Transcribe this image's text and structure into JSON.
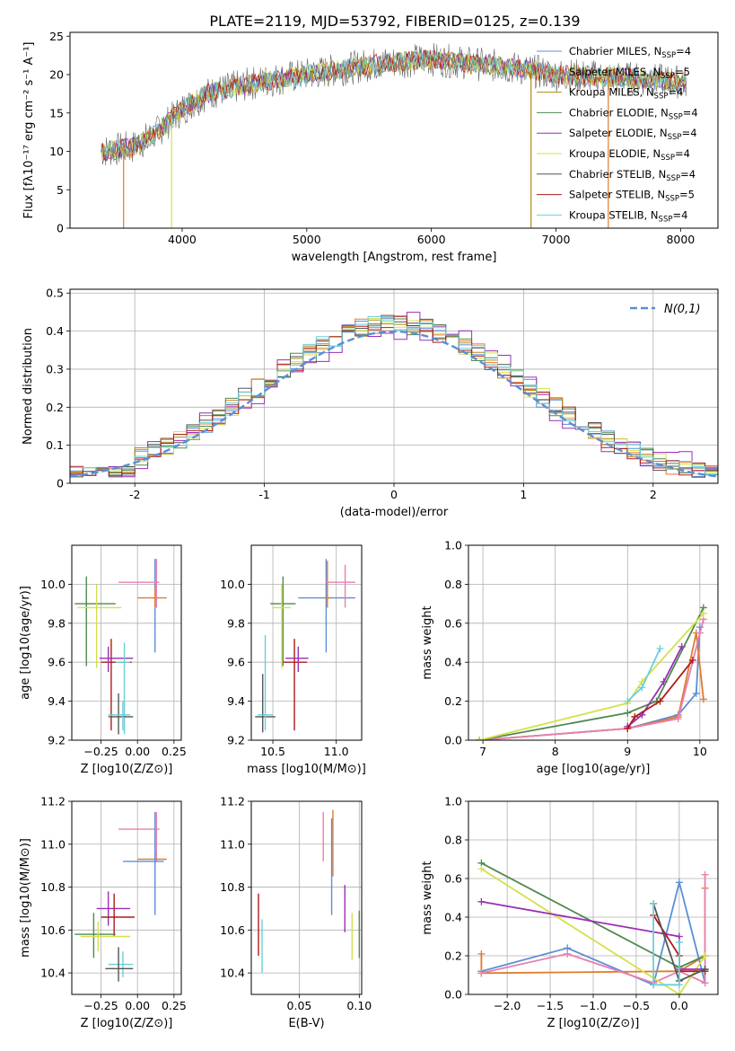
{
  "title": "PLATE=2119, MJD=53792, FIBERID=0125, z=0.139",
  "colors": {
    "chabrier_miles": "#5b8fd6",
    "salpeter_miles": "#e07b2c",
    "kroupa_miles": "#b08a18",
    "chabrier_elodie": "#4e8a4e",
    "salpeter_elodie": "#9a2fb5",
    "kroupa_elodie": "#d4e04a",
    "chabrier_stelib": "#555555",
    "salpeter_stelib": "#b01a1a",
    "kroupa_stelib": "#6ccfd8",
    "pink": "#e87fb0",
    "gaussian": "#5b8fd6",
    "grid": "#b0b0b0"
  },
  "chart_data": [
    {
      "id": "spectrum",
      "type": "line",
      "xlabel": "wavelength [Angstrom, rest frame]",
      "ylabel": "Flux [fλ10⁻¹⁷ erg cm⁻² s⁻¹ A⁻¹]",
      "xlim": [
        3100,
        8300
      ],
      "ylim": [
        0,
        25.5
      ],
      "xticks": [
        4000,
        5000,
        6000,
        7000,
        8000
      ],
      "yticks": [
        0,
        5,
        10,
        15,
        20,
        25
      ],
      "legend_position": "top-right",
      "legend": [
        "Chabrier MILES, N_SSP=4",
        "Salpeter MILES, N_SSP=5",
        "Kroupa MILES, N_SSP=4",
        "Chabrier ELODIE, N_SSP=4",
        "Salpeter ELODIE, N_SSP=4",
        "Kroupa ELODIE, N_SSP=4",
        "Chabrier STELIB, N_SSP=4",
        "Salpeter STELIB, N_SSP=5",
        "Kroupa STELIB, N_SSP=4"
      ],
      "continuum": {
        "x": [
          3350,
          3600,
          3800,
          4000,
          4200,
          4600,
          5000,
          5600,
          6000,
          6600,
          7000,
          7600,
          8050
        ],
        "y": [
          10,
          10.5,
          12.5,
          15.5,
          17.5,
          19,
          20,
          21.5,
          22,
          21,
          20,
          19.5,
          19
        ]
      },
      "spikes": [
        {
          "x": 3530,
          "y_min": 0
        },
        {
          "x": 3915,
          "y_min": 0
        },
        {
          "x": 6800,
          "y_min": 0
        },
        {
          "x": 7420,
          "y_min": 0
        }
      ]
    },
    {
      "id": "residuals",
      "type": "histogram",
      "xlabel": "(data-model)/error",
      "ylabel": "Normed distribution",
      "xlim": [
        -2.5,
        2.5
      ],
      "ylim": [
        0,
        0.51
      ],
      "xticks": [
        -2,
        -1,
        0,
        1,
        2
      ],
      "yticks": [
        0,
        0.1,
        0.2,
        0.3,
        0.4,
        0.5
      ],
      "bin_width": 0.1,
      "legend": "N(0,1)",
      "legend_position": "top-right",
      "gaussian": {
        "mu": 0,
        "sigma": 1
      }
    },
    {
      "id": "Z_age",
      "type": "errorbar",
      "xlabel": "Z [log10(Z/Z⊙)]",
      "ylabel": "age  [log10(age/yr)]",
      "xlim": [
        -0.45,
        0.3
      ],
      "ylim": [
        9.2,
        10.2
      ],
      "xticks": [
        -0.25,
        0,
        0.25
      ],
      "xticklabels": [
        "−0.25",
        "0.00",
        "0.25"
      ],
      "yticks": [
        9.2,
        9.4,
        9.6,
        9.8,
        10.0
      ],
      "yticklabels": [
        "9.2",
        "9.4",
        "9.6",
        "9.8",
        "10.0"
      ],
      "points": [
        {
          "c": "chabrier_miles",
          "x": 0.12,
          "xe": [
            0.1,
            0.14
          ],
          "y": 9.93,
          "ye": [
            9.65,
            10.13
          ]
        },
        {
          "c": "salpeter_miles",
          "x": 0.12,
          "xe": [
            0.0,
            0.2
          ],
          "y": 9.93,
          "ye": [
            9.88,
            9.98
          ]
        },
        {
          "c": "pink",
          "x": 0.13,
          "xe": [
            -0.13,
            0.15
          ],
          "y": 10.01,
          "ye": [
            9.88,
            10.13
          ]
        },
        {
          "c": "chabrier_elodie",
          "x": -0.35,
          "xe": [
            -0.43,
            -0.15
          ],
          "y": 9.9,
          "ye": [
            9.58,
            10.04
          ]
        },
        {
          "c": "kroupa_elodie",
          "x": -0.28,
          "xe": [
            -0.41,
            -0.11
          ],
          "y": 9.88,
          "ye": [
            9.57,
            10.0
          ]
        },
        {
          "c": "salpeter_stelib",
          "x": -0.18,
          "xe": [
            -0.25,
            -0.04
          ],
          "y": 9.6,
          "ye": [
            9.25,
            9.72
          ]
        },
        {
          "c": "salpeter_elodie",
          "x": -0.2,
          "xe": [
            -0.26,
            -0.03
          ],
          "y": 9.62,
          "ye": [
            9.55,
            9.68
          ]
        },
        {
          "c": "kroupa_stelib",
          "x": -0.09,
          "xe": [
            -0.15,
            -0.05
          ],
          "y": 9.6,
          "ye": [
            9.23,
            9.7
          ]
        },
        {
          "c": "chabrier_stelib",
          "x": -0.13,
          "xe": [
            -0.2,
            -0.03
          ],
          "y": 9.32,
          "ye": [
            9.23,
            9.44
          ]
        },
        {
          "c": "kroupa_stelib",
          "x": -0.1,
          "xe": [
            -0.2,
            -0.05
          ],
          "y": 9.33,
          "ye": [
            9.25,
            9.4
          ]
        }
      ]
    },
    {
      "id": "mass_age",
      "type": "errorbar",
      "xlabel": "mass [log10(M/M⊙)]",
      "ylabel": "",
      "xlim": [
        10.33,
        11.2
      ],
      "ylim": [
        9.2,
        10.2
      ],
      "xticks": [
        10.5,
        11.0
      ],
      "xticklabels": [
        "10.5",
        "11.0"
      ],
      "yticks": [
        9.2,
        9.4,
        9.6,
        9.8,
        10.0
      ],
      "yticklabels": [
        "9.2",
        "9.4",
        "9.6",
        "9.8",
        "10.0"
      ],
      "points": [
        {
          "c": "chabrier_miles",
          "x": 10.92,
          "xe": [
            10.7,
            11.15
          ],
          "y": 9.93,
          "ye": [
            9.65,
            10.13
          ]
        },
        {
          "c": "salpeter_miles",
          "x": 10.93,
          "xe": [
            10.9,
            10.96
          ],
          "y": 9.93,
          "ye": [
            9.88,
            10.12
          ]
        },
        {
          "c": "pink",
          "x": 11.07,
          "xe": [
            10.92,
            11.15
          ],
          "y": 10.01,
          "ye": [
            9.88,
            10.1
          ]
        },
        {
          "c": "chabrier_elodie",
          "x": 10.58,
          "xe": [
            10.48,
            10.68
          ],
          "y": 9.9,
          "ye": [
            9.58,
            10.04
          ]
        },
        {
          "c": "kroupa_elodie",
          "x": 10.57,
          "xe": [
            10.5,
            10.64
          ],
          "y": 9.88,
          "ye": [
            9.57,
            10.0
          ]
        },
        {
          "c": "salpeter_stelib",
          "x": 10.67,
          "xe": [
            10.58,
            10.77
          ],
          "y": 9.6,
          "ye": [
            9.25,
            9.72
          ]
        },
        {
          "c": "salpeter_elodie",
          "x": 10.7,
          "xe": [
            10.6,
            10.78
          ],
          "y": 9.62,
          "ye": [
            9.55,
            9.68
          ]
        },
        {
          "c": "chabrier_stelib",
          "x": 10.42,
          "xe": [
            10.36,
            10.52
          ],
          "y": 9.32,
          "ye": [
            9.24,
            9.54
          ]
        },
        {
          "c": "kroupa_stelib",
          "x": 10.44,
          "xe": [
            10.38,
            10.5
          ],
          "y": 9.33,
          "ye": [
            9.25,
            9.74
          ]
        }
      ]
    },
    {
      "id": "age_weight",
      "type": "line",
      "xlabel": "age  [log10(age/yr)]",
      "ylabel": "mass weight",
      "xlim": [
        6.8,
        10.25
      ],
      "ylim": [
        0,
        1.0
      ],
      "xticks": [
        7,
        8,
        9,
        10
      ],
      "yticks": [
        0,
        0.2,
        0.4,
        0.6,
        0.8,
        1.0
      ],
      "yticklabels": [
        "0.0",
        "0.2",
        "0.4",
        "0.6",
        "0.8",
        "1.0"
      ],
      "series": [
        {
          "c": "chabrier_miles",
          "x": [
            6.95,
            9.0,
            9.7,
            9.95,
            10.0
          ],
          "y": [
            0.0,
            0.06,
            0.13,
            0.24,
            0.58
          ]
        },
        {
          "c": "salpeter_miles",
          "x": [
            6.95,
            9.0,
            9.7,
            9.95,
            10.05
          ],
          "y": [
            0.0,
            0.06,
            0.12,
            0.55,
            0.21
          ]
        },
        {
          "c": "pink",
          "x": [
            6.95,
            9.0,
            9.7,
            10.0,
            10.05
          ],
          "y": [
            0.0,
            0.06,
            0.11,
            0.55,
            0.62
          ]
        },
        {
          "c": "chabrier_elodie",
          "x": [
            6.95,
            9.0,
            9.4,
            10.05
          ],
          "y": [
            0.0,
            0.14,
            0.2,
            0.68
          ]
        },
        {
          "c": "kroupa_elodie",
          "x": [
            6.95,
            9.0,
            9.2,
            10.05
          ],
          "y": [
            0.0,
            0.19,
            0.3,
            0.65
          ]
        },
        {
          "c": "salpeter_elodie",
          "x": [
            9.0,
            9.2,
            9.5,
            9.75
          ],
          "y": [
            0.07,
            0.13,
            0.3,
            0.48
          ]
        },
        {
          "c": "salpeter_stelib",
          "x": [
            9.0,
            9.1,
            9.45,
            9.9
          ],
          "y": [
            0.06,
            0.12,
            0.2,
            0.41
          ]
        },
        {
          "c": "kroupa_stelib",
          "x": [
            9.0,
            9.2,
            9.45
          ],
          "y": [
            0.2,
            0.27,
            0.47
          ]
        }
      ]
    },
    {
      "id": "Z_mass",
      "type": "errorbar",
      "xlabel": "Z [log10(Z/Z⊙)]",
      "ylabel": "mass [log10(M/M⊙)]",
      "xlim": [
        -0.45,
        0.3
      ],
      "ylim": [
        10.3,
        11.2
      ],
      "xticks": [
        -0.25,
        0,
        0.25
      ],
      "xticklabels": [
        "−0.25",
        "0.00",
        "0.25"
      ],
      "yticks": [
        10.4,
        10.6,
        10.8,
        11.0,
        11.2
      ],
      "yticklabels": [
        "10.4",
        "10.6",
        "10.8",
        "11.0",
        "11.2"
      ],
      "points": [
        {
          "c": "pink",
          "x": 0.13,
          "xe": [
            -0.13,
            0.15
          ],
          "y": 11.07,
          "ye": [
            10.92,
            11.15
          ]
        },
        {
          "c": "salpeter_miles",
          "x": 0.12,
          "xe": [
            0.0,
            0.2
          ],
          "y": 10.93,
          "ye": [
            10.9,
            10.96
          ]
        },
        {
          "c": "chabrier_miles",
          "x": 0.12,
          "xe": [
            -0.1,
            0.18
          ],
          "y": 10.92,
          "ye": [
            10.67,
            11.15
          ]
        },
        {
          "c": "salpeter_elodie",
          "x": -0.2,
          "xe": [
            -0.28,
            -0.05
          ],
          "y": 10.7,
          "ye": [
            10.62,
            10.78
          ]
        },
        {
          "c": "salpeter_stelib",
          "x": -0.16,
          "xe": [
            -0.25,
            -0.02
          ],
          "y": 10.66,
          "ye": [
            10.57,
            10.77
          ]
        },
        {
          "c": "chabrier_elodie",
          "x": -0.3,
          "xe": [
            -0.43,
            -0.15
          ],
          "y": 10.58,
          "ye": [
            10.47,
            10.68
          ]
        },
        {
          "c": "kroupa_elodie",
          "x": -0.27,
          "xe": [
            -0.39,
            -0.05
          ],
          "y": 10.57,
          "ye": [
            10.5,
            10.64
          ]
        },
        {
          "c": "kroupa_stelib",
          "x": -0.1,
          "xe": [
            -0.2,
            -0.03
          ],
          "y": 10.44,
          "ye": [
            10.38,
            10.5
          ]
        },
        {
          "c": "chabrier_stelib",
          "x": -0.13,
          "xe": [
            -0.22,
            -0.03
          ],
          "y": 10.42,
          "ye": [
            10.36,
            10.52
          ]
        }
      ]
    },
    {
      "id": "ebv_mass",
      "type": "errorbar",
      "xlabel": "E(B-V)",
      "ylabel": "",
      "xlim": [
        0.01,
        0.102
      ],
      "ylim": [
        10.3,
        11.2
      ],
      "xticks": [
        0.05,
        0.1
      ],
      "xticklabels": [
        "0.05",
        "0.10"
      ],
      "yticks": [
        10.4,
        10.6,
        10.8,
        11.0,
        11.2
      ],
      "yticklabels": [
        "10.4",
        "10.6",
        "10.8",
        "11.0",
        "11.2"
      ],
      "points": [
        {
          "c": "salpeter_stelib",
          "x": 0.016,
          "y": 10.6,
          "ye": [
            10.48,
            10.77
          ]
        },
        {
          "c": "kroupa_stelib",
          "x": 0.019,
          "y": 10.55,
          "ye": [
            10.4,
            10.65
          ]
        },
        {
          "c": "pink",
          "x": 0.07,
          "y": 11.0,
          "ye": [
            10.92,
            11.15
          ]
        },
        {
          "c": "salpeter_miles",
          "x": 0.078,
          "y": 10.95,
          "ye": [
            10.85,
            11.16
          ]
        },
        {
          "c": "chabrier_miles",
          "x": 0.077,
          "y": 10.9,
          "ye": [
            10.67,
            11.12
          ]
        },
        {
          "c": "salpeter_elodie",
          "x": 0.088,
          "y": 10.7,
          "ye": [
            10.59,
            10.81
          ]
        },
        {
          "c": "kroupa_elodie",
          "x": 0.094,
          "y": 10.58,
          "ye": [
            10.46,
            10.68
          ]
        },
        {
          "c": "chabrier_elodie",
          "x": 0.1,
          "y": 10.58,
          "ye": [
            10.47,
            10.69
          ]
        }
      ]
    },
    {
      "id": "Z_weight",
      "type": "line",
      "xlabel": "Z [log10(Z/Z⊙)]",
      "ylabel": "mass weight",
      "xlim": [
        -2.45,
        0.45
      ],
      "ylim": [
        0,
        1.0
      ],
      "xticks": [
        -2.0,
        -1.5,
        -1.0,
        -0.5,
        0.0
      ],
      "xticklabels": [
        "−2.0",
        "−1.5",
        "−1.0",
        "−0.5",
        "0.0"
      ],
      "yticks": [
        0,
        0.2,
        0.4,
        0.6,
        0.8,
        1.0
      ],
      "yticklabels": [
        "0.0",
        "0.2",
        "0.4",
        "0.6",
        "0.8",
        "1.0"
      ],
      "series": [
        {
          "c": "chabrier_miles",
          "x": [
            -2.3,
            -1.3,
            -0.3,
            0.0,
            0.3
          ],
          "y": [
            0.12,
            0.24,
            0.05,
            0.58,
            0.06
          ]
        },
        {
          "c": "salpeter_miles",
          "x": [
            -2.3,
            -2.3,
            0.0,
            0.0,
            0.3,
            0.3
          ],
          "y": [
            0.21,
            0.11,
            0.12,
            0.12,
            0.2,
            0.55
          ]
        },
        {
          "c": "pink",
          "x": [
            -2.3,
            -1.3,
            -0.3,
            0.0,
            0.3,
            0.3
          ],
          "y": [
            0.11,
            0.21,
            0.06,
            0.12,
            0.06,
            0.62
          ]
        },
        {
          "c": "chabrier_elodie",
          "x": [
            -2.3,
            0.0,
            0.3
          ],
          "y": [
            0.68,
            0.14,
            0.2
          ]
        },
        {
          "c": "kroupa_elodie",
          "x": [
            -2.3,
            0.0,
            0.3
          ],
          "y": [
            0.65,
            0.0,
            0.2
          ]
        },
        {
          "c": "salpeter_elodie",
          "x": [
            -2.3,
            0.0,
            0.0,
            0.3
          ],
          "y": [
            0.48,
            0.3,
            0.13,
            0.13
          ]
        },
        {
          "c": "salpeter_stelib",
          "x": [
            -0.3,
            0.0,
            0.0,
            0.3
          ],
          "y": [
            0.41,
            0.2,
            0.12,
            0.12
          ]
        },
        {
          "c": "chabrier_stelib",
          "x": [
            -0.3,
            0.0,
            0.3
          ],
          "y": [
            0.47,
            0.07,
            0.13
          ]
        },
        {
          "c": "kroupa_stelib",
          "x": [
            -0.3,
            -0.3,
            0.0,
            0.0
          ],
          "y": [
            0.47,
            0.05,
            0.05,
            0.27
          ]
        }
      ]
    }
  ]
}
